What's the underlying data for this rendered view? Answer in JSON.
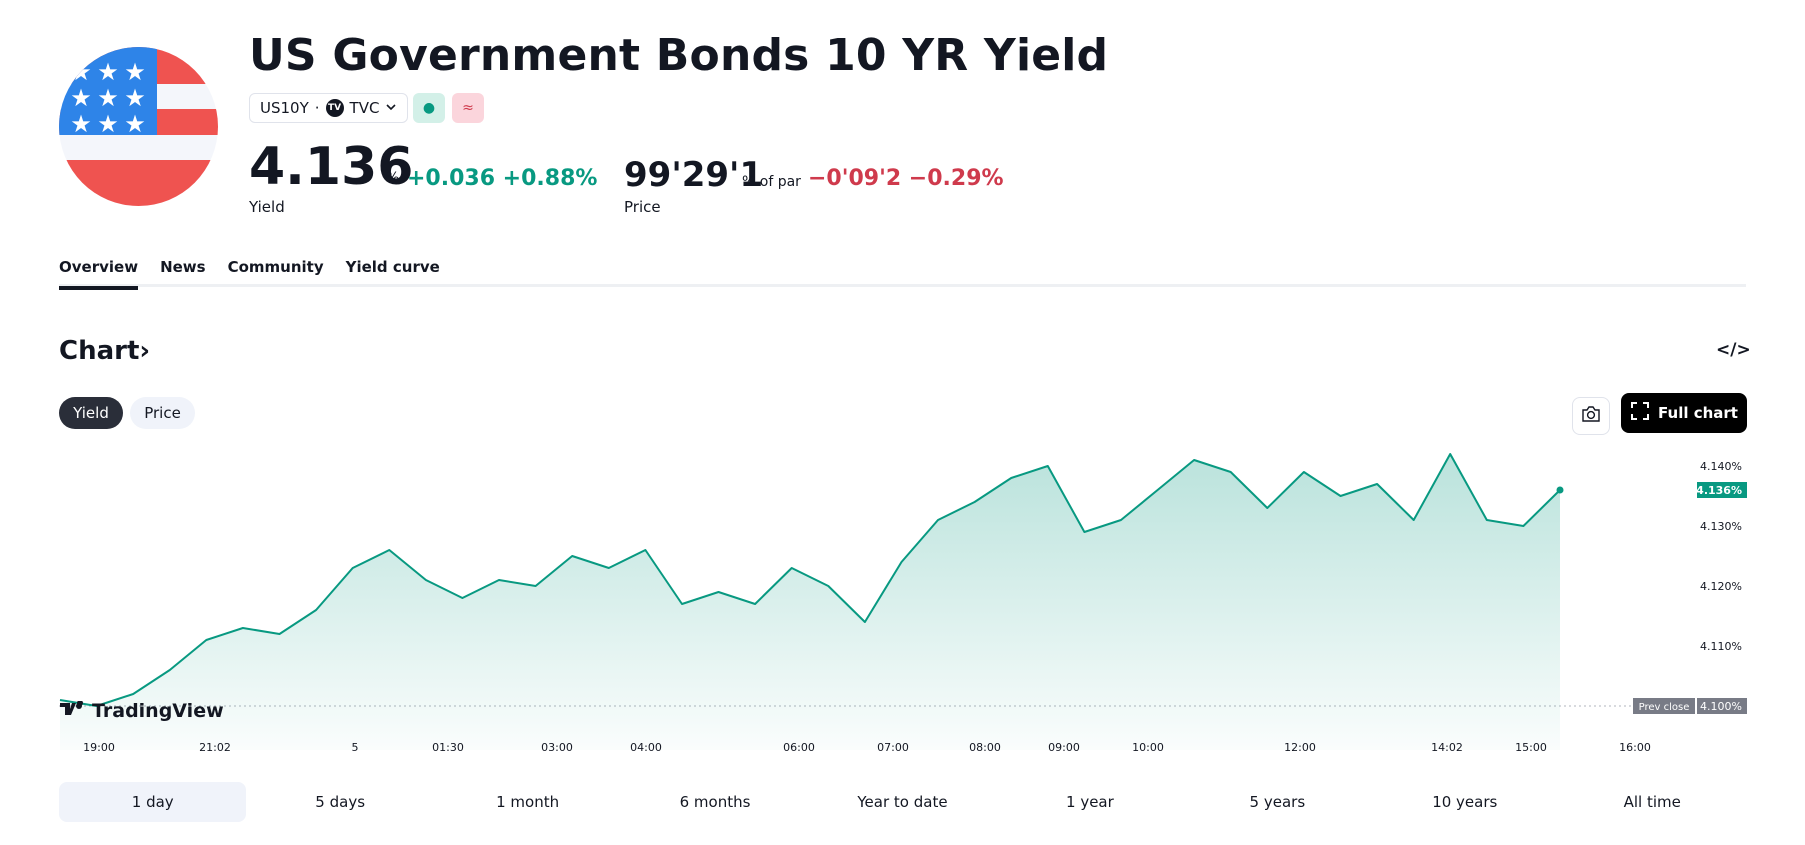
{
  "header": {
    "title": "US Government Bonds 10 YR Yield",
    "symbol": "US10Y",
    "separator": "·",
    "exchange": "TVC",
    "exchange_logo": "TV",
    "badge_market_open": "●",
    "badge_approx": "≈"
  },
  "quote": {
    "yield_value": "4.136",
    "yield_unit": "%",
    "yield_change": "+0.036 +0.88%",
    "yield_label": "Yield",
    "price_value": "99'29'1",
    "price_unit": "% of par",
    "price_change": "−0'09'2 −0.29%",
    "price_label": "Price"
  },
  "tabs": [
    "Overview",
    "News",
    "Community",
    "Yield curve"
  ],
  "chart_section": {
    "heading": "Chart",
    "heading_chevron": "›",
    "embed_icon": "</>",
    "toggle_yield": "Yield",
    "toggle_price": "Price",
    "full_chart": "Full chart",
    "watermark": "TradingView"
  },
  "colors": {
    "green": "#089981",
    "red": "#cf3a4c",
    "dark": "#131722"
  },
  "chart_data": {
    "type": "area",
    "x_ticks": [
      "19:00",
      "21:02",
      "5",
      "01:30",
      "03:00",
      "04:00",
      "06:00",
      "07:00",
      "08:00",
      "09:00",
      "10:00",
      "12:00",
      "14:02",
      "15:00",
      "16:00"
    ],
    "y_ticks": [
      "4.140%",
      "4.130%",
      "4.120%",
      "4.110%"
    ],
    "ylim": [
      4.096,
      4.146
    ],
    "last_label": "4.136%",
    "prev_close_label": "Prev close",
    "prev_close_value_label": "4.100%",
    "prev_close": 4.1,
    "x": [
      "19:00",
      "19:30",
      "20:00",
      "20:30",
      "21:02",
      "21:30",
      "22:00",
      "22:30",
      "23:00",
      "23:30",
      "5",
      "00:30",
      "01:00",
      "01:30",
      "02:00",
      "02:30",
      "03:00",
      "03:30",
      "04:00",
      "04:30",
      "05:00",
      "05:30",
      "06:00",
      "06:30",
      "07:00",
      "07:30",
      "08:00",
      "08:30",
      "09:00",
      "09:30",
      "10:00",
      "10:30",
      "11:00",
      "11:30",
      "12:00",
      "12:30",
      "13:00",
      "13:30",
      "14:02",
      "14:30",
      "15:00",
      "15:20"
    ],
    "values": [
      4.101,
      4.1,
      4.102,
      4.106,
      4.111,
      4.113,
      4.112,
      4.116,
      4.123,
      4.126,
      4.121,
      4.118,
      4.121,
      4.12,
      4.125,
      4.123,
      4.126,
      4.117,
      4.119,
      4.117,
      4.123,
      4.12,
      4.114,
      4.124,
      4.131,
      4.134,
      4.138,
      4.14,
      4.129,
      4.131,
      4.136,
      4.141,
      4.139,
      4.133,
      4.139,
      4.135,
      4.137,
      4.131,
      4.142,
      4.131,
      4.13,
      4.136
    ],
    "series": [
      {
        "name": "US10Y",
        "color": "#089981"
      }
    ]
  },
  "ranges": [
    "1 day",
    "5 days",
    "1 month",
    "6 months",
    "Year to date",
    "1 year",
    "5 years",
    "10 years",
    "All time"
  ]
}
